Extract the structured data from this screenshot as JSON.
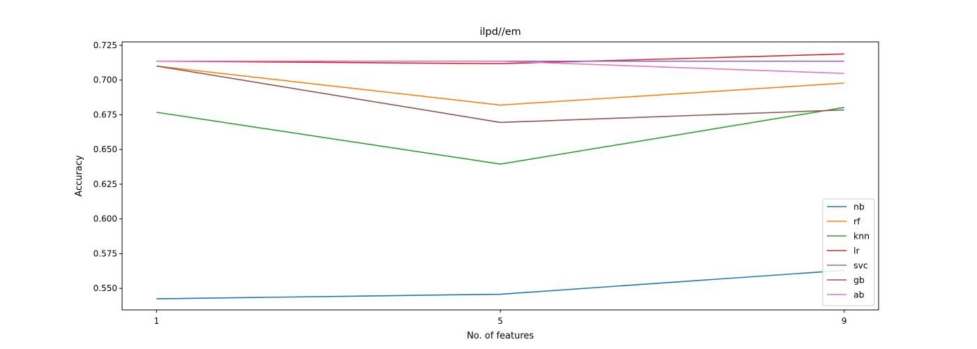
{
  "chart_data": {
    "type": "line",
    "title": "ilpd//em",
    "xlabel": "No. of features",
    "ylabel": "Accuracy",
    "x": [
      1,
      5,
      9
    ],
    "xticks": [
      1,
      5,
      9
    ],
    "xlim": [
      0.6,
      9.4
    ],
    "ylim": [
      0.5345,
      0.7275
    ],
    "yticks": [
      0.55,
      0.575,
      0.6,
      0.625,
      0.65,
      0.675,
      0.7,
      0.725
    ],
    "ytick_labels": [
      "0.550",
      "0.575",
      "0.600",
      "0.625",
      "0.650",
      "0.675",
      "0.700",
      "0.725"
    ],
    "legend_position": "lower-right",
    "grid": false,
    "series": [
      {
        "name": "nb",
        "color": "#1f77b4",
        "values": [
          0.5425,
          0.5458,
          0.563
        ]
      },
      {
        "name": "rf",
        "color": "#ff7f0e",
        "values": [
          0.7101,
          0.682,
          0.6978
        ]
      },
      {
        "name": "knn",
        "color": "#2ca02c",
        "values": [
          0.6768,
          0.6395,
          0.6803
        ]
      },
      {
        "name": "lr",
        "color": "#d62728",
        "values": [
          0.7136,
          0.7118,
          0.7188
        ]
      },
      {
        "name": "svc",
        "color": "#9467bd",
        "values": [
          0.7136,
          0.7136,
          0.7136
        ]
      },
      {
        "name": "gb",
        "color": "#8c564b",
        "values": [
          0.7101,
          0.6695,
          0.6785
        ]
      },
      {
        "name": "ab",
        "color": "#e377c2",
        "values": [
          0.7136,
          0.7136,
          0.7048
        ]
      }
    ]
  }
}
